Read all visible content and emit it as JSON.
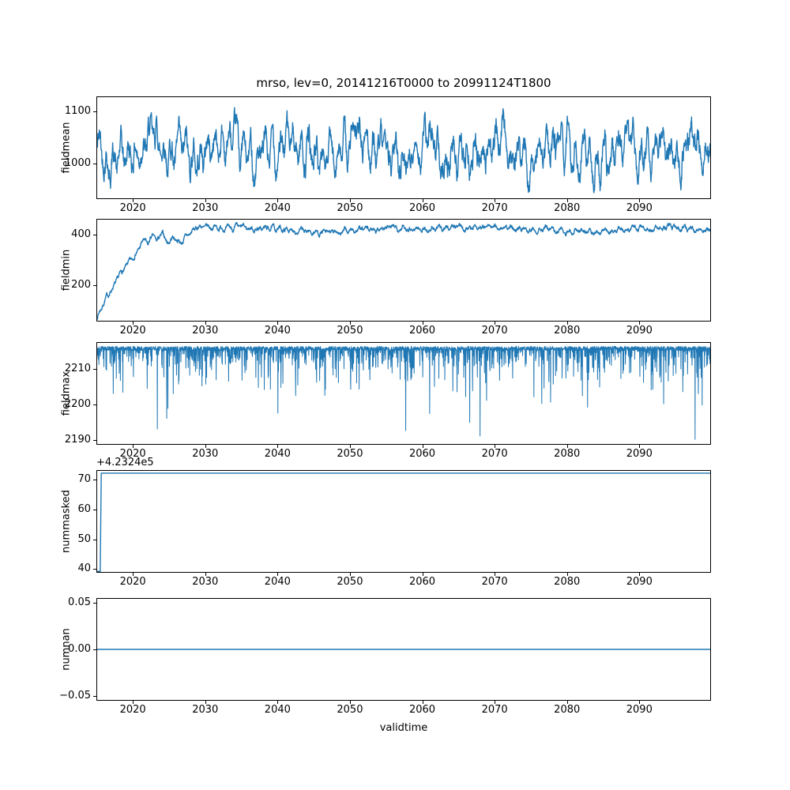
{
  "figure": {
    "title": "mrso, lev=0, 20141216T0000 to 20991124T1800",
    "xlabel": "validtime",
    "line_color": "#1f77b4",
    "background": "#ffffff",
    "x": {
      "lim": [
        2014.96,
        2099.9
      ],
      "ticks": [
        2020,
        2030,
        2040,
        2050,
        2060,
        2070,
        2080,
        2090
      ],
      "tick_labels": [
        "2020",
        "2030",
        "2040",
        "2050",
        "2060",
        "2070",
        "2080",
        "2090"
      ]
    }
  },
  "chart_data": [
    {
      "name": "fieldmean",
      "type": "line",
      "ylabel": "fieldmean",
      "ylim": [
        931,
        1129
      ],
      "yticks": [
        1000,
        1100
      ],
      "ytick_labels": [
        "1000",
        "1100"
      ],
      "grid": false,
      "series": [
        {
          "name": "fieldmean",
          "gen": "noisy-seasonal",
          "base": 1025,
          "seasonal_amp": 22,
          "decadal_amp": 18,
          "decadal_period": 9.5,
          "noise_smooth": 0.9,
          "noise_gain": 170,
          "clamp": [
            942,
            1120
          ],
          "seed": 42,
          "n": 2300,
          "approx_mean": 1030,
          "approx_min": 940,
          "approx_max": 1120
        }
      ]
    },
    {
      "name": "fieldmin",
      "type": "line",
      "ylabel": "fieldmin",
      "ylim": [
        56,
        464
      ],
      "yticks": [
        200,
        400
      ],
      "ytick_labels": [
        "200",
        "400"
      ],
      "grid": false,
      "series": [
        {
          "name": "fieldmin",
          "gen": "keypoints-noise",
          "keypoints": [
            [
              2014.96,
              70
            ],
            [
              2015.5,
              105
            ],
            [
              2016,
              140
            ],
            [
              2016.5,
              160
            ],
            [
              2017,
              185
            ],
            [
              2017.5,
              205
            ],
            [
              2018,
              235
            ],
            [
              2018.5,
              255
            ],
            [
              2019,
              275
            ],
            [
              2019.5,
              295
            ],
            [
              2020,
              310
            ],
            [
              2020.4,
              335
            ],
            [
              2020.8,
              350
            ],
            [
              2021.2,
              370
            ],
            [
              2021.6,
              385
            ],
            [
              2022,
              355
            ],
            [
              2022.4,
              390
            ],
            [
              2022.8,
              400
            ],
            [
              2023.2,
              370
            ],
            [
              2023.6,
              395
            ],
            [
              2024,
              405
            ],
            [
              2024.5,
              380
            ],
            [
              2025,
              375
            ],
            [
              2025.5,
              395
            ],
            [
              2026,
              385
            ],
            [
              2026.5,
              370
            ],
            [
              2027,
              385
            ],
            [
              2027.5,
              400
            ],
            [
              2028,
              412
            ],
            [
              2028.5,
              425
            ],
            [
              2029,
              438
            ],
            [
              2030,
              430
            ],
            [
              2031,
              435
            ],
            [
              2033,
              428
            ],
            [
              2035,
              432
            ],
            [
              2037,
              426
            ],
            [
              2039,
              430
            ],
            [
              2041,
              424
            ],
            [
              2043,
              418
            ],
            [
              2045,
              414
            ],
            [
              2047,
              410
            ],
            [
              2049,
              416
            ],
            [
              2051,
              422
            ],
            [
              2053,
              426
            ],
            [
              2055,
              430
            ],
            [
              2057,
              434
            ],
            [
              2059,
              428
            ],
            [
              2061,
              424
            ],
            [
              2063,
              430
            ],
            [
              2065,
              440
            ],
            [
              2066,
              432
            ],
            [
              2068,
              436
            ],
            [
              2070,
              434
            ],
            [
              2072,
              428
            ],
            [
              2074,
              430
            ],
            [
              2076,
              426
            ],
            [
              2078,
              423
            ],
            [
              2080,
              418
            ],
            [
              2082,
              421
            ],
            [
              2084,
              419
            ],
            [
              2086,
              417
            ],
            [
              2088,
              422
            ],
            [
              2090,
              428
            ],
            [
              2092,
              426
            ],
            [
              2094,
              430
            ],
            [
              2096,
              432
            ],
            [
              2098,
              428
            ],
            [
              2099.9,
              424
            ]
          ],
          "seasonal_amp": 4,
          "noise_smooth": 0.85,
          "noise_gain": 40,
          "clamp": [
            60,
            455
          ],
          "seed": 7,
          "n": 2300
        }
      ]
    },
    {
      "name": "fieldmax",
      "type": "line",
      "ylabel": "fieldmax",
      "ylim": [
        2188.7,
        2217.6
      ],
      "yticks": [
        2190,
        2200,
        2210
      ],
      "ytick_labels": [
        "2190",
        "2200",
        "2210"
      ],
      "grid": false,
      "series": [
        {
          "name": "fieldmax",
          "gen": "spikes",
          "base": 2216.0,
          "base_noise": 0.6,
          "spike_prob": 0.3,
          "spike_scale": 3.2,
          "spike_cap": 21,
          "deep_spikes": [
            [
              2023.3,
              2193
            ],
            [
              2024.6,
              2196
            ],
            [
              2040.0,
              2197.5
            ],
            [
              2057.7,
              2192.5
            ],
            [
              2068.0,
              2191
            ],
            [
              2082.2,
              2202.5
            ],
            [
              2097.8,
              2190
            ]
          ],
          "clamp": [
            2189.2,
            2217.2
          ],
          "seed": 13,
          "n": 3200,
          "approx_baseline": 2216,
          "approx_min": 2190
        }
      ]
    },
    {
      "name": "nummasked",
      "type": "line",
      "ylabel": "nummasked",
      "ylim": [
        38.8,
        73.2
      ],
      "yticks": [
        40,
        50,
        60,
        70
      ],
      "ytick_labels": [
        "40",
        "50",
        "60",
        "70"
      ],
      "offset_text": "+4.2324e5",
      "grid": false,
      "series": [
        {
          "name": "nummasked",
          "gen": "step",
          "start_value": 39.0,
          "end_value": 72.4,
          "step_time": 2015.4,
          "seed": 1,
          "n": 600,
          "note_actual_values": "423279 before step, 423312 after (offset +4.2324e5)"
        }
      ]
    },
    {
      "name": "numnan",
      "type": "line",
      "ylabel": "numnan",
      "ylim": [
        -0.055,
        0.055
      ],
      "yticks": [
        -0.05,
        0.0,
        0.05
      ],
      "ytick_labels": [
        "−0.05",
        "0.00",
        "0.05"
      ],
      "grid": false,
      "series": [
        {
          "name": "numnan",
          "gen": "constant",
          "value": 0.0,
          "n": 2
        }
      ]
    }
  ]
}
